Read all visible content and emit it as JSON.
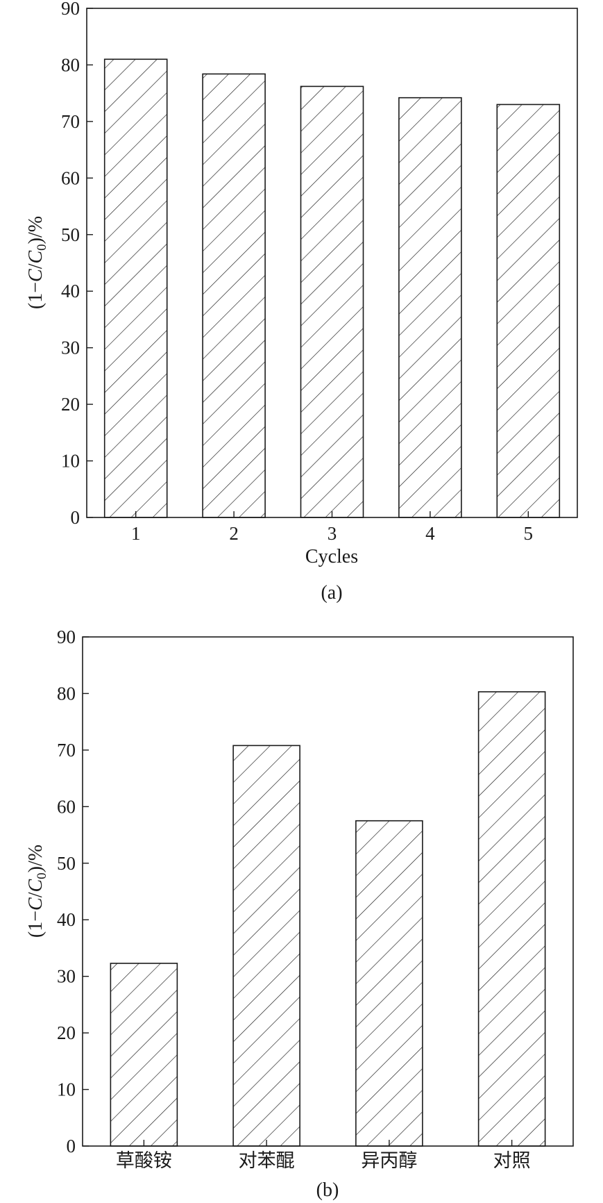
{
  "chart_data": [
    {
      "type": "bar",
      "panel_label": "(a)",
      "xlabel": "Cycles",
      "ylabel": "(1−C/C0)/%",
      "ylabel_parts": [
        "(1−",
        "C",
        "/",
        "C",
        "0",
        ")/%"
      ],
      "ylim": [
        0,
        90
      ],
      "yticks": [
        0,
        10,
        20,
        30,
        40,
        50,
        60,
        70,
        80,
        90
      ],
      "categories": [
        "1",
        "2",
        "3",
        "4",
        "5"
      ],
      "values": [
        81.0,
        78.4,
        76.2,
        74.2,
        73.0
      ],
      "pattern": "diagonal-hatch",
      "grid": false
    },
    {
      "type": "bar",
      "panel_label": "(b)",
      "xlabel": "",
      "ylabel": "(1−C/C0)/%",
      "ylabel_parts": [
        "(1−",
        "C",
        "/",
        "C",
        "0",
        ")/%"
      ],
      "ylim": [
        0,
        90
      ],
      "yticks": [
        0,
        10,
        20,
        30,
        40,
        50,
        60,
        70,
        80,
        90
      ],
      "categories": [
        "草酸铵",
        "对苯醌",
        "异丙醇",
        "对照"
      ],
      "values": [
        32.3,
        70.8,
        57.5,
        80.3
      ],
      "pattern": "diagonal-hatch",
      "grid": false
    }
  ]
}
